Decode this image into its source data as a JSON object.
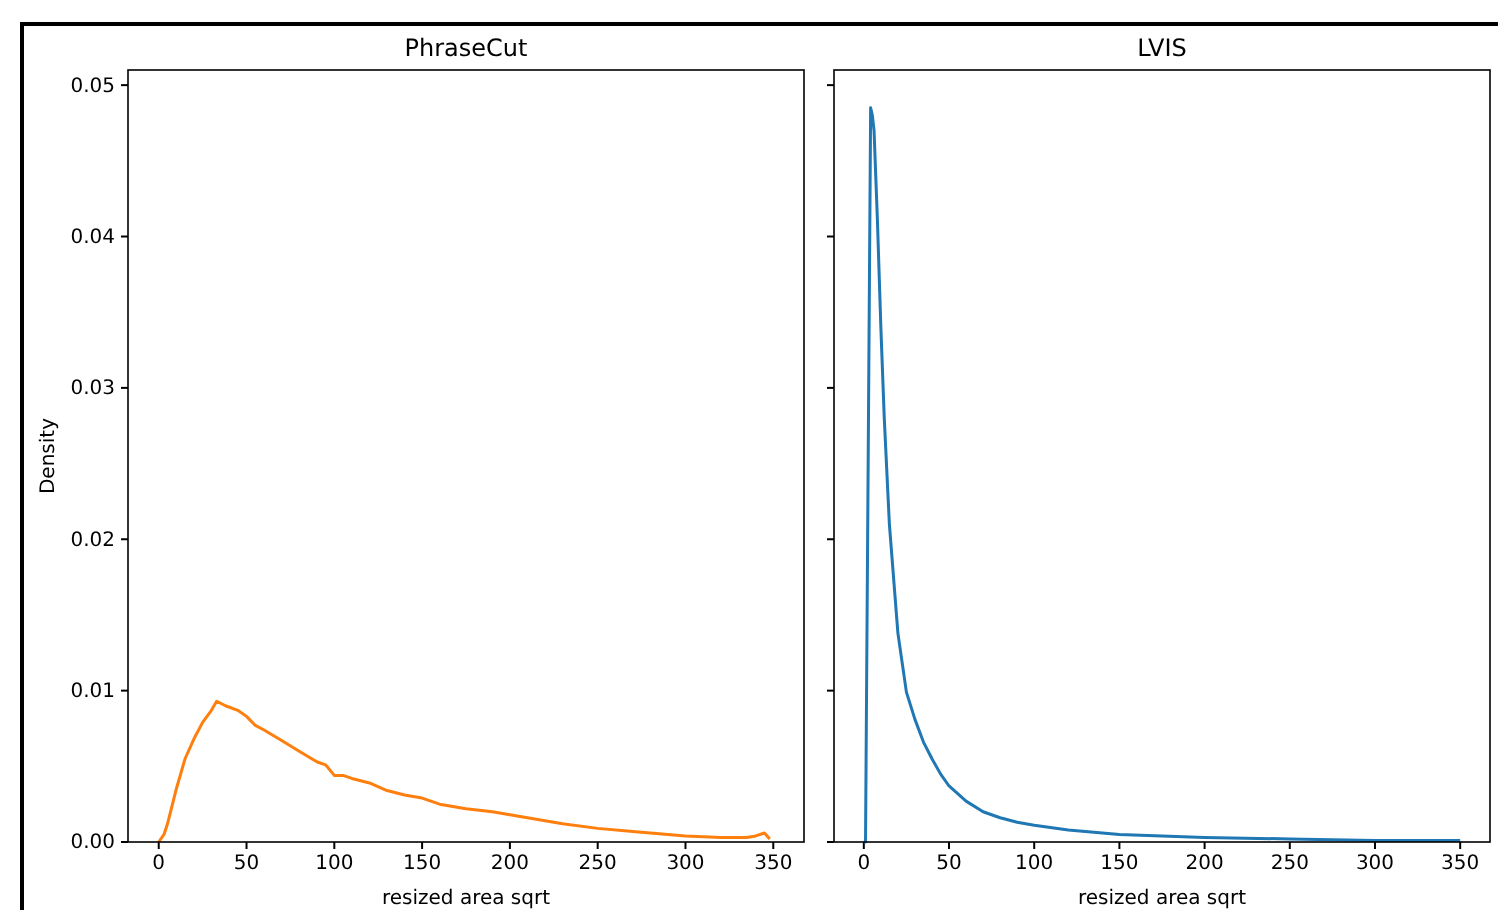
{
  "chart_data": [
    {
      "type": "line",
      "title": "PhraseCut",
      "xlabel": "resized area sqrt",
      "ylabel": "Density",
      "xlim": [
        -17.5,
        367.5
      ],
      "xticks": [
        0,
        50,
        100,
        150,
        200,
        250,
        300,
        350
      ],
      "ylim": [
        0,
        0.051
      ],
      "yticks": [
        {
          "value": 0,
          "label": "0.00"
        },
        {
          "value": 0.01,
          "label": "0.01"
        },
        {
          "value": 0.02,
          "label": "0.02"
        },
        {
          "value": 0.03,
          "label": "0.03"
        },
        {
          "value": 0.04,
          "label": "0.04"
        },
        {
          "value": 0.05,
          "label": "0.05"
        }
      ],
      "grid": false,
      "series": [
        {
          "color": "#ff7f0e",
          "x": [
            0,
            3,
            5,
            10,
            15,
            20,
            25,
            30,
            33,
            38,
            45,
            50,
            55,
            60,
            70,
            80,
            90,
            95,
            100,
            105,
            110,
            120,
            130,
            140,
            150,
            160,
            175,
            190,
            200,
            215,
            230,
            250,
            270,
            290,
            300,
            320,
            335,
            340,
            345,
            348
          ],
          "values": [
            0,
            0.0005,
            0.0012,
            0.0035,
            0.0055,
            0.0068,
            0.0079,
            0.0087,
            0.0093,
            0.009,
            0.0087,
            0.0083,
            0.0077,
            0.0074,
            0.0067,
            0.006,
            0.0053,
            0.0051,
            0.0044,
            0.0044,
            0.0042,
            0.0039,
            0.0034,
            0.0031,
            0.0029,
            0.0025,
            0.0022,
            0.002,
            0.0018,
            0.0015,
            0.0012,
            0.0009,
            0.0007,
            0.0005,
            0.0004,
            0.0003,
            0.0003,
            0.0004,
            0.0006,
            0.0002
          ]
        }
      ]
    },
    {
      "type": "line",
      "title": "LVIS",
      "xlabel": "resized area sqrt",
      "xlim": [
        -17.5,
        367.5
      ],
      "xticks": [
        0,
        50,
        100,
        150,
        200,
        250,
        300,
        350
      ],
      "ylim": [
        0,
        0.051
      ],
      "yticks": [
        {
          "value": 0,
          "label": null
        },
        {
          "value": 0.01,
          "label": null
        },
        {
          "value": 0.02,
          "label": null
        },
        {
          "value": 0.03,
          "label": null
        },
        {
          "value": 0.04,
          "label": null
        },
        {
          "value": 0.05,
          "label": null
        }
      ],
      "tick_labels": "x",
      "grid": false,
      "series": [
        {
          "color": "#1f77b4",
          "x": [
            0,
            1,
            4,
            5,
            6,
            8,
            10,
            12,
            15,
            20,
            25,
            30,
            35,
            40,
            45,
            50,
            60,
            70,
            80,
            90,
            100,
            120,
            150,
            200,
            250,
            300,
            350
          ],
          "values": [
            0,
            0,
            0.0485,
            0.048,
            0.047,
            0.041,
            0.034,
            0.028,
            0.021,
            0.0138,
            0.0099,
            0.0081,
            0.0066,
            0.0055,
            0.0045,
            0.0037,
            0.0027,
            0.002,
            0.0016,
            0.0013,
            0.0011,
            0.0008,
            0.0005,
            0.0003,
            0.0002,
            0.0001,
            0.0001
          ]
        }
      ]
    }
  ]
}
